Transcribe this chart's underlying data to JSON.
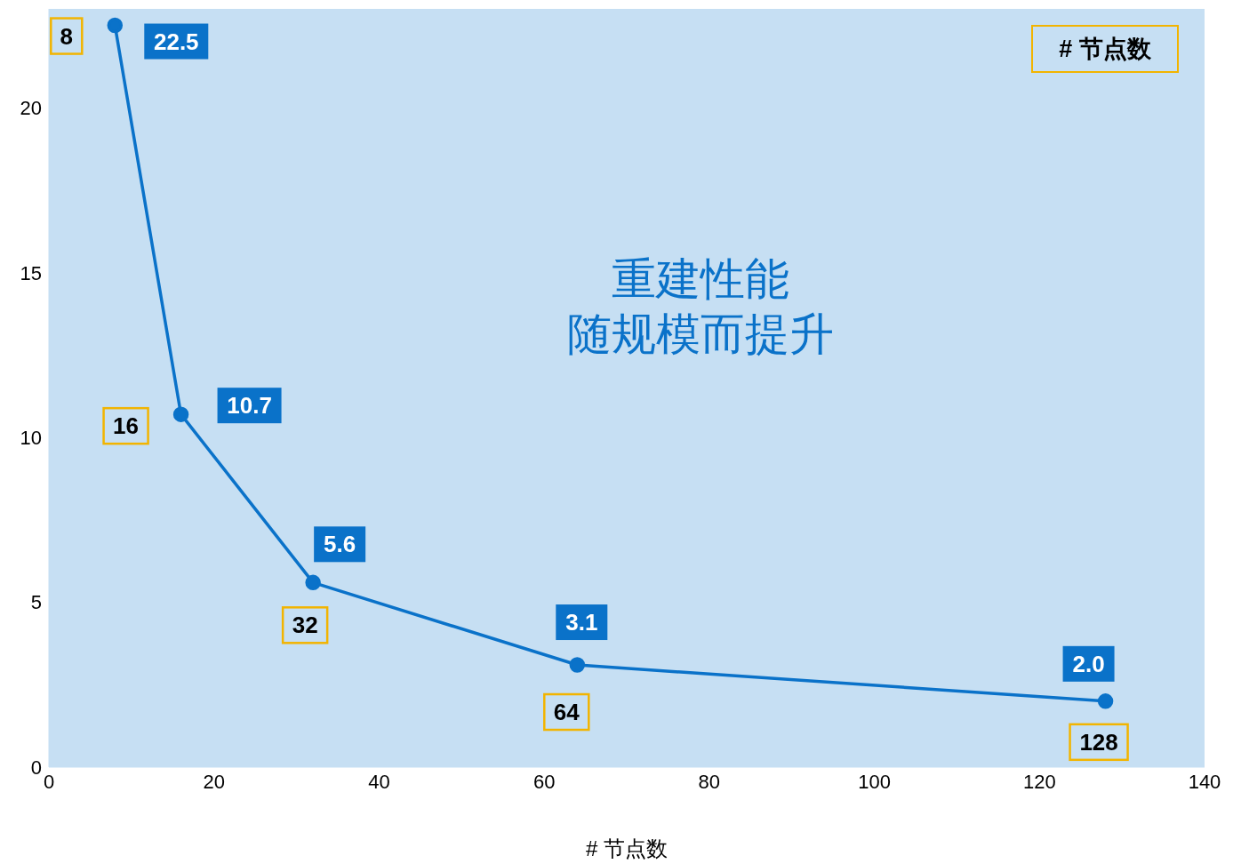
{
  "chart_data": {
    "type": "line",
    "title": "重建性能",
    "subtitle": "随规模而提升",
    "xlabel": "# 节点数",
    "x": [
      8,
      16,
      32,
      64,
      128
    ],
    "series": [
      {
        "color": "#0a72c9",
        "values": [
          22.5,
          10.7,
          5.6,
          3.1,
          2.0
        ],
        "value_labels": [
          "22.5",
          "10.7",
          "5.6",
          "3.1",
          "2.0"
        ]
      }
    ],
    "marker": "circle",
    "line_style": "solid",
    "legend": false,
    "xlim": [
      0,
      140
    ],
    "xticks": [
      0,
      20,
      40,
      60,
      80,
      100,
      120,
      140
    ],
    "ylim": [
      0,
      23
    ],
    "yticks": [
      0,
      5,
      10,
      15,
      20
    ],
    "annotations": [
      "# 节点数",
      {
        "text": "8",
        "x": 8,
        "y": 22.5
      },
      {
        "text": "16",
        "x": 16,
        "y": 10.7
      },
      {
        "text": "32",
        "x": 32,
        "y": 5.6
      },
      {
        "text": "64",
        "x": 64,
        "y": 3.1
      },
      {
        "text": "128",
        "x": 128,
        "y": 2.0
      }
    ]
  }
}
